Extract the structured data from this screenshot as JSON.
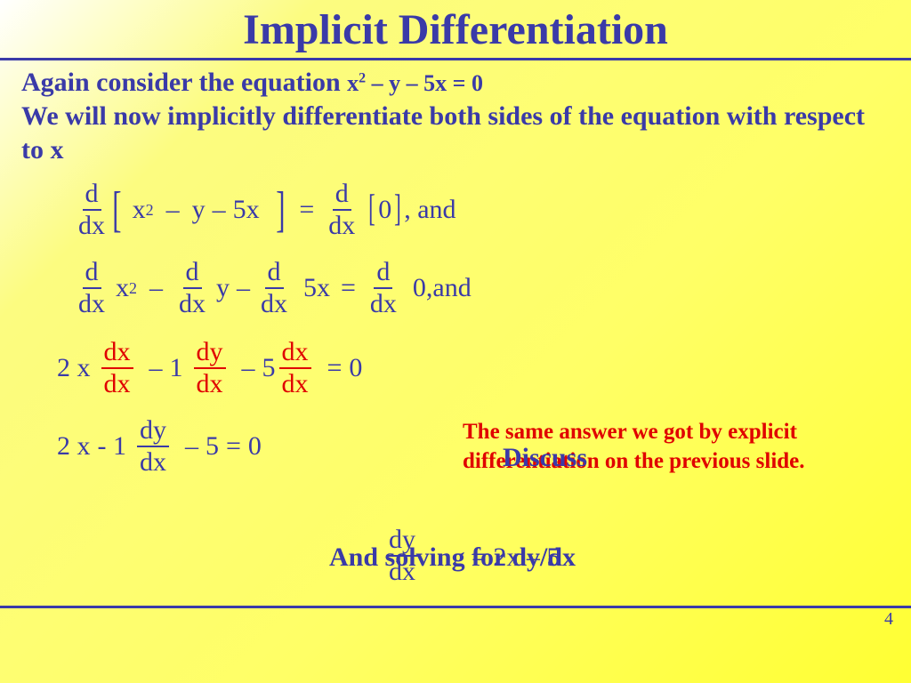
{
  "title": "Implicit Differentiation",
  "intro": {
    "again": "Again consider the equation",
    "equation_main": "x",
    "equation_sup": "2",
    "equation_rest": " – y – 5x = 0",
    "sentence": "We will now implicitly differentiate both sides of the equation with respect to x"
  },
  "frac": {
    "d": "d",
    "dx": "dx",
    "dy": "dy"
  },
  "eq1": {
    "inside_x": "x",
    "sup": "2",
    "minus1": "–",
    "y": "y",
    "minus2": "–",
    "fivex": "5x",
    "equals": "=",
    "zero": "0",
    "comma_and": ",  and"
  },
  "eq2": {
    "x": "x",
    "sup": "2",
    "minus1": "–",
    "y": "y",
    "minus2": "–",
    "fivex": "5x",
    "equals": "=",
    "zero": "0,",
    "and": "  and"
  },
  "eq3": {
    "two_x": "2 x",
    "minus1": "–",
    "one": "1",
    "minus2": "–",
    "five": "5",
    "equals": "=",
    "zero": "0"
  },
  "eq4": {
    "two_x": "2 x",
    "minus1": "- 1",
    "minus2": "–",
    "five": "5",
    "equals": "=",
    "zero": "0"
  },
  "overlay": {
    "red_text": "The same answer we got by explicit differentiation on the previous slide.",
    "discuss": "Discuss",
    "solve": "And solving for dy/dx",
    "eq_part": "= 2x – 5"
  },
  "page": "4",
  "colors": {
    "primary": "#3a3aa8",
    "accent_red": "#e00000",
    "bg_start": "#ffffff",
    "bg_end": "#ffff33"
  }
}
